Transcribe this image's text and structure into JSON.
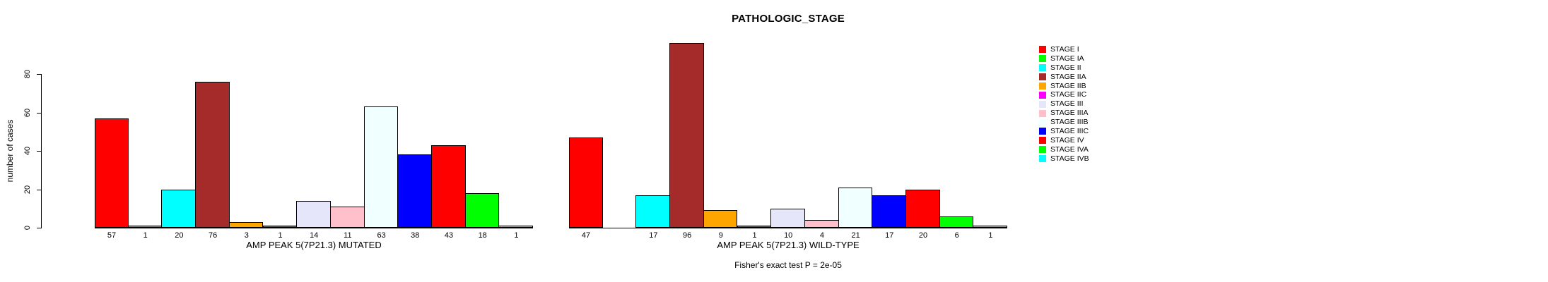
{
  "chart_data": {
    "type": "bar",
    "title": "PATHOLOGIC_STAGE",
    "ylabel": "number of cases",
    "xlabel": "",
    "yticks": [
      0,
      20,
      40,
      60,
      80
    ],
    "ylim": [
      0,
      96
    ],
    "grid": false,
    "legend_position": "right",
    "categories": [
      "STAGE I",
      "STAGE IA",
      "STAGE II",
      "STAGE IIA",
      "STAGE IIB",
      "STAGE IIC",
      "STAGE III",
      "STAGE IIIA",
      "STAGE IIIB",
      "STAGE IIIC",
      "STAGE IV",
      "STAGE IVA",
      "STAGE IVB"
    ],
    "colors": [
      "#FF0000",
      "#00FF00",
      "#00FFFF",
      "#A52A2A",
      "#FFA500",
      "#FF00FF",
      "#E6E6FA",
      "#FFC0CB",
      "#F0FFFF",
      "#0000FF",
      "#FF0000",
      "#00FF00",
      "#00FFFF"
    ],
    "series": [
      {
        "name": "AMP PEAK 5(7P21.3) MUTATED",
        "values": [
          57,
          1,
          20,
          76,
          3,
          1,
          14,
          11,
          63,
          38,
          43,
          18,
          1
        ],
        "bar_labels": [
          "57",
          "1",
          "20",
          "76",
          "3",
          "1",
          "14",
          "11",
          "63",
          "38",
          "43",
          "18",
          "1"
        ]
      },
      {
        "name": "AMP PEAK 5(7P21.3) WILD-TYPE",
        "values": [
          47,
          0,
          17,
          96,
          9,
          1,
          10,
          4,
          21,
          17,
          20,
          6,
          1
        ],
        "bar_labels": [
          "47",
          "",
          "17",
          "96",
          "9",
          "1",
          "10",
          "4",
          "21",
          "17",
          "20",
          "6",
          "1"
        ]
      }
    ],
    "legend": [
      {
        "label": "STAGE I",
        "color": "#FF0000"
      },
      {
        "label": "STAGE IA",
        "color": "#00FF00"
      },
      {
        "label": "STAGE II",
        "color": "#00FFFF"
      },
      {
        "label": "STAGE IIA",
        "color": "#A52A2A"
      },
      {
        "label": "STAGE IIB",
        "color": "#FFA500"
      },
      {
        "label": "STAGE IIC",
        "color": "#FF00FF"
      },
      {
        "label": "STAGE III",
        "color": "#E6E6FA"
      },
      {
        "label": "STAGE IIIA",
        "color": "#FFC0CB"
      },
      {
        "label": "STAGE IIIB",
        "color": "#F0FFFF"
      },
      {
        "label": "STAGE IIIC",
        "color": "#0000FF"
      },
      {
        "label": "STAGE IV",
        "color": "#FF0000"
      },
      {
        "label": "STAGE IVA",
        "color": "#00FF00"
      },
      {
        "label": "STAGE IVB",
        "color": "#00FFFF"
      }
    ],
    "annotation": "Fisher's exact test P = 2e-05"
  }
}
